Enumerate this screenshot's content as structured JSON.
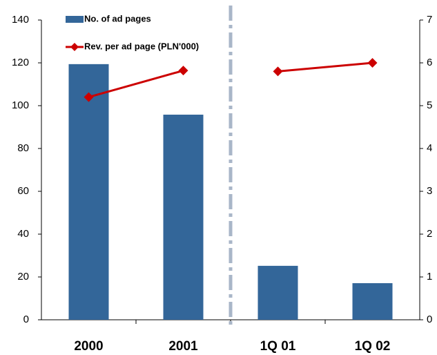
{
  "chart_data": {
    "type": "bar_line",
    "categories": [
      "2000",
      "2001",
      "1Q 01",
      "1Q 02"
    ],
    "divider_after": 1,
    "series": [
      {
        "name": "No. of ad pages",
        "type": "bar",
        "color": "#336699",
        "values": [
          119.4,
          95.8,
          25.2,
          17.1
        ]
      },
      {
        "name": "Rev. per ad page (PLN'000)",
        "type": "line",
        "axis": "y2",
        "color": "#cc0000",
        "values": [
          5.2,
          5.82,
          5.8,
          6.0
        ]
      }
    ],
    "ylim": [
      0,
      140
    ],
    "yticks": [
      0,
      20,
      40,
      60,
      80,
      100,
      120,
      140
    ],
    "y2lim": [
      0,
      7
    ],
    "y2ticks": [
      0,
      1,
      2,
      3,
      4,
      5,
      6,
      7
    ]
  }
}
